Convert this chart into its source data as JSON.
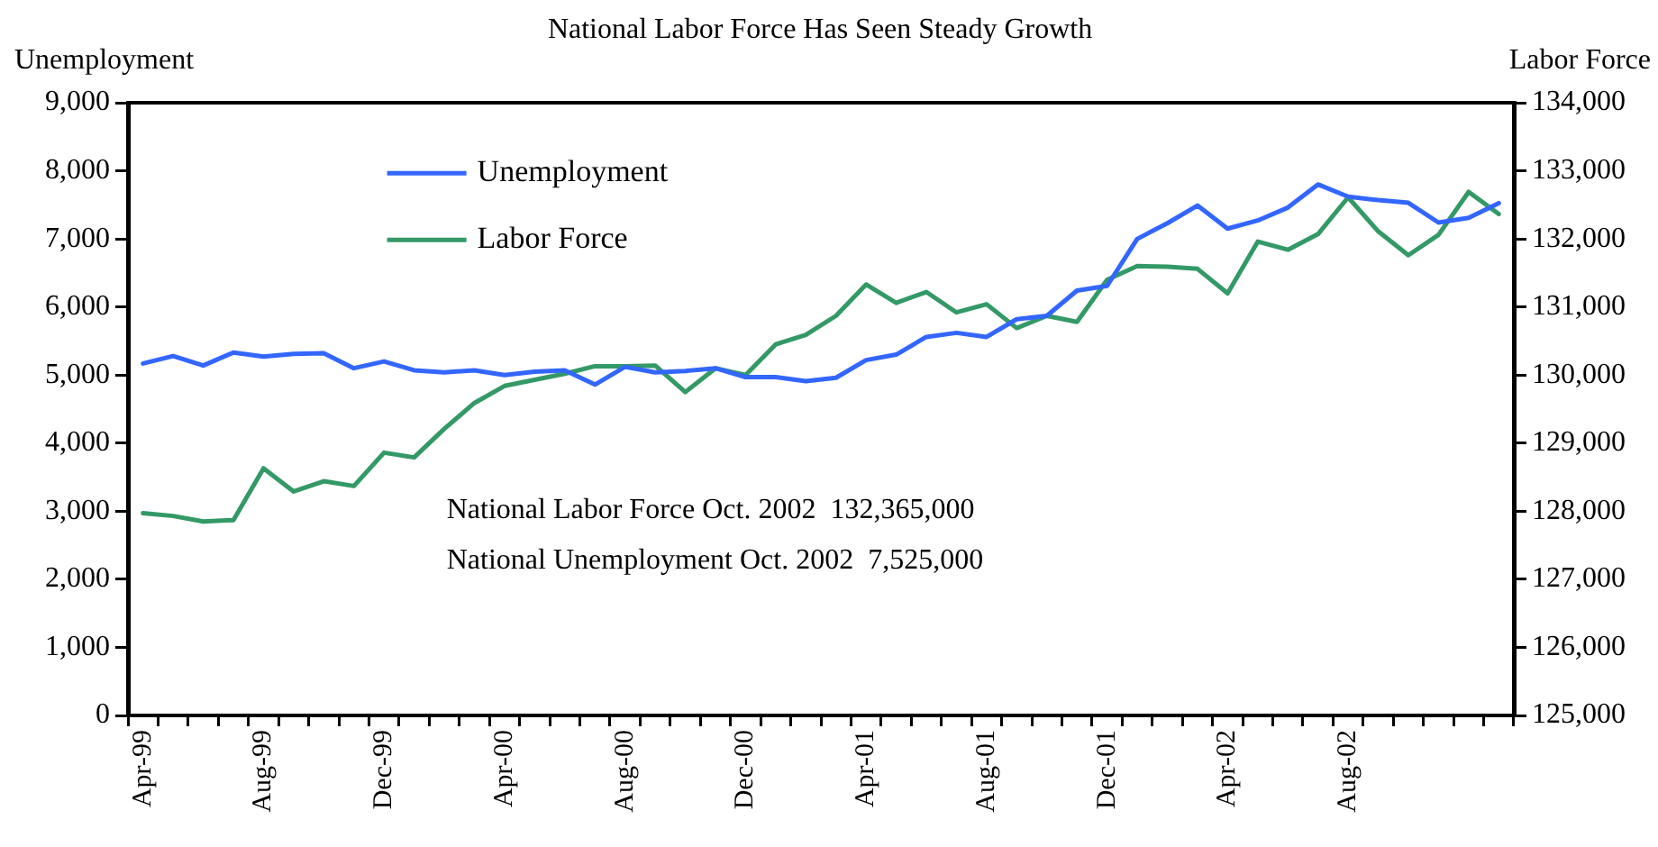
{
  "chart_data": {
    "type": "line",
    "title": "National Labor Force Has Seen Steady Growth",
    "ylabel": "Unemployment",
    "y2label": "Labor Force",
    "categories": [
      "Apr-99",
      null,
      null,
      null,
      "Aug-99",
      null,
      null,
      null,
      "Dec-99",
      null,
      null,
      null,
      "Apr-00",
      null,
      null,
      null,
      "Aug-00",
      null,
      null,
      null,
      "Dec-00",
      null,
      null,
      null,
      "Apr-01",
      null,
      null,
      null,
      "Aug-01",
      null,
      null,
      null,
      "Dec-01",
      null,
      null,
      null,
      "Apr-02",
      null,
      null,
      null,
      "Aug-02",
      null,
      null,
      null,
      null,
      null
    ],
    "series": [
      {
        "name": "Unemployment",
        "color": "#3366ff",
        "values": [
          5170,
          5280,
          5140,
          5330,
          5270,
          5310,
          5320,
          5100,
          5200,
          5070,
          5040,
          5070,
          5000,
          5050,
          5070,
          4860,
          5120,
          5040,
          5060,
          5100,
          4970,
          4970,
          4910,
          4960,
          5220,
          5300,
          5560,
          5620,
          5560,
          5820,
          5870,
          6240,
          6310,
          7000,
          7230,
          7490,
          7150,
          7270,
          7460,
          7800,
          7620,
          7570,
          7530,
          7240,
          7310,
          7525
        ]
      },
      {
        "name": "Labor Force",
        "color": "#339966",
        "axis": "y2",
        "values": [
          127970,
          127930,
          127850,
          127870,
          128630,
          128290,
          128440,
          128370,
          128860,
          128790,
          129210,
          129590,
          129840,
          129930,
          130020,
          130130,
          130130,
          130140,
          129750,
          130100,
          130000,
          130450,
          130590,
          130870,
          131330,
          131060,
          131220,
          130920,
          131040,
          130690,
          130870,
          130780,
          131400,
          131600,
          131590,
          131560,
          131200,
          131960,
          131840,
          132070,
          132610,
          132110,
          131760,
          132060,
          132690,
          132365
        ]
      }
    ],
    "ylim": [
      0,
      9000
    ],
    "yticks": [
      0,
      {
        "value": 1000,
        "label": "1,000"
      },
      {
        "value": 2000,
        "label": "2,000"
      },
      {
        "value": 3000,
        "label": "3,000"
      },
      {
        "value": 4000,
        "label": "4,000"
      },
      {
        "value": 5000,
        "label": "5,000"
      },
      {
        "value": 6000,
        "label": "6,000"
      },
      {
        "value": 7000,
        "label": "7,000"
      },
      {
        "value": 8000,
        "label": "8,000"
      },
      {
        "value": 9000,
        "label": "9,000"
      }
    ],
    "y2lim": [
      125000,
      134000
    ],
    "y2ticks": [
      {
        "value": 125000,
        "label": "125,000"
      },
      {
        "value": 126000,
        "label": "126,000"
      },
      {
        "value": 127000,
        "label": "127,000"
      },
      {
        "value": 128000,
        "label": "128,000"
      },
      {
        "value": 129000,
        "label": "129,000"
      },
      {
        "value": 130000,
        "label": "130,000"
      },
      {
        "value": 131000,
        "label": "131,000"
      },
      {
        "value": 132000,
        "label": "132,000"
      },
      {
        "value": 133000,
        "label": "133,000"
      },
      {
        "value": 134000,
        "label": "134,000"
      }
    ],
    "legend": "top left",
    "annotations": [
      "National Labor Force Oct. 2002  132,365,000",
      "National Unemployment Oct. 2002  7,525,000"
    ]
  }
}
